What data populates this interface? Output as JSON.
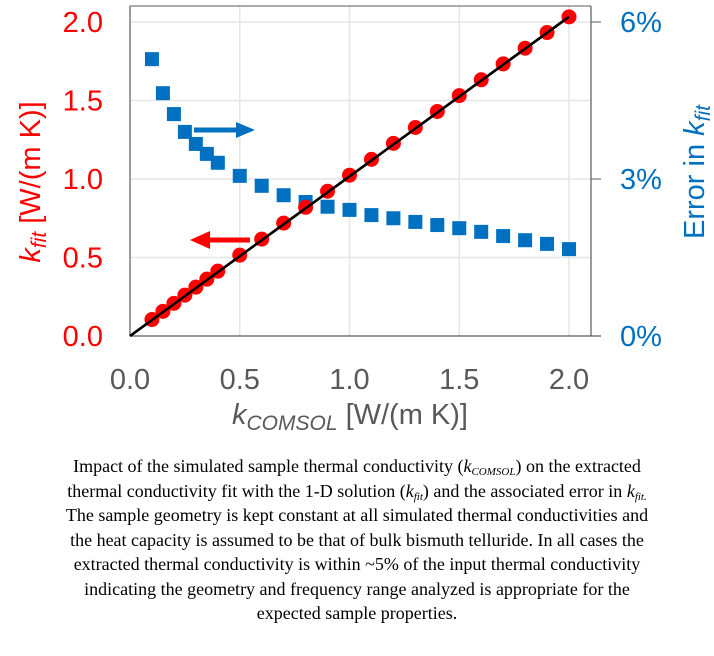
{
  "chart_data": {
    "type": "scatter",
    "title": "",
    "xlabel": {
      "main": "k",
      "subscript": "COMSOL",
      "units": " [W/(m K)]"
    },
    "ylabel_left": {
      "main": "k",
      "subscript": "fit",
      "units": " [W/(m K)]"
    },
    "ylabel_right": {
      "prefix": "Error in ",
      "main": "k",
      "subscript": "fit"
    },
    "xlim": [
      0,
      2.1
    ],
    "ylim_left": [
      0,
      2.0
    ],
    "ylim_right": [
      0,
      6
    ],
    "xticks": [
      0.0,
      0.5,
      1.0,
      1.5,
      2.0
    ],
    "xtick_labels": [
      "0.0",
      "0.5",
      "1.0",
      "1.5",
      "2.0"
    ],
    "yticks_left": [
      0.0,
      0.5,
      1.0,
      1.5,
      2.0
    ],
    "ytick_labels_left": [
      "0.0",
      "0.5",
      "1.0",
      "1.5",
      "2.0"
    ],
    "yticks_right": [
      0,
      3,
      6
    ],
    "ytick_labels_right": [
      "0%",
      "3%",
      "6%"
    ],
    "grid": true,
    "x": [
      0.1,
      0.15,
      0.2,
      0.25,
      0.3,
      0.35,
      0.4,
      0.5,
      0.6,
      0.7,
      0.8,
      0.9,
      1.0,
      1.1,
      1.2,
      1.3,
      1.4,
      1.5,
      1.6,
      1.7,
      1.8,
      1.9,
      2.0
    ],
    "series": [
      {
        "name": "k_fit",
        "axis": "left",
        "marker": "circle",
        "color": "#FF0000",
        "values": [
          0.105,
          0.157,
          0.208,
          0.26,
          0.311,
          0.362,
          0.413,
          0.515,
          0.617,
          0.719,
          0.82,
          0.922,
          1.024,
          1.125,
          1.227,
          1.328,
          1.43,
          1.531,
          1.632,
          1.733,
          1.833,
          1.933,
          2.033
        ]
      },
      {
        "name": "Error in k_fit (%)",
        "axis": "right",
        "marker": "square",
        "color": "#0070C0",
        "values": [
          5.29,
          4.64,
          4.24,
          3.9,
          3.67,
          3.48,
          3.31,
          3.06,
          2.87,
          2.69,
          2.56,
          2.47,
          2.41,
          2.31,
          2.25,
          2.18,
          2.12,
          2.06,
          1.99,
          1.91,
          1.83,
          1.76,
          1.66
        ]
      }
    ],
    "reference_line": {
      "name": "y = x fit line",
      "color": "#000000",
      "from": [
        0,
        0
      ],
      "to": [
        2.0,
        2.033
      ]
    },
    "annotations": [
      {
        "name": "blue-arrow",
        "direction": "right",
        "color": "#0070C0",
        "points_to": "right axis"
      },
      {
        "name": "red-arrow",
        "direction": "left",
        "color": "#FF0000",
        "points_to": "left axis"
      }
    ],
    "colors": {
      "left_axis": "#FF0000",
      "right_axis": "#0070C0",
      "x_axis": "#595959",
      "grid": "#E6E6E6",
      "frame": "#595959"
    }
  },
  "caption": {
    "line1_a": "Impact of the simulated sample thermal conductivity (",
    "line1_k": "k",
    "line1_sub": "COMSOL",
    "line1_b": ") on the extracted",
    "line2_a": "thermal conductivity fit with the 1-D solution (",
    "line2_k": "k",
    "line2_sub": "fit",
    "line2_b": ") and the associated error in ",
    "line2_k2": "k",
    "line2_sub2": "fit.",
    "line3": "The sample geometry is kept constant at all simulated thermal conductivities and",
    "line4": "the heat capacity is assumed to be that of bulk bismuth telluride. In all cases the",
    "line5": "extracted thermal conductivity is within ~5% of the input thermal conductivity",
    "line6": "indicating the geometry and frequency range analyzed is appropriate for the",
    "line7": "expected sample properties."
  }
}
